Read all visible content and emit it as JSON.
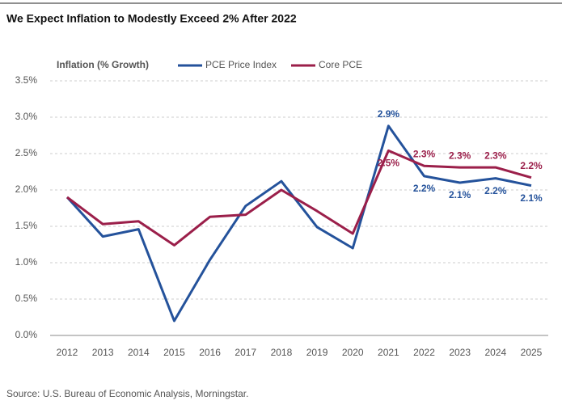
{
  "chart_data": {
    "type": "line",
    "title": "We Expect Inflation to Modestly Exceed 2% After 2022",
    "legend_title": "Inflation (% Growth)",
    "source": "Source: U.S. Bureau of Economic Analysis, Morningstar.",
    "categories": [
      "2012",
      "2013",
      "2014",
      "2015",
      "2016",
      "2017",
      "2018",
      "2019",
      "2020",
      "2021",
      "2022",
      "2023",
      "2024",
      "2025"
    ],
    "series": [
      {
        "name": "PCE Price Index",
        "color": "#24529b",
        "values": [
          1.9,
          1.36,
          1.46,
          0.2,
          1.04,
          1.78,
          2.12,
          1.49,
          1.2,
          2.88,
          2.19,
          2.1,
          2.16,
          2.06
        ],
        "value_labels": [
          null,
          null,
          null,
          null,
          null,
          null,
          null,
          null,
          null,
          "2.9%",
          "2.2%",
          "2.1%",
          "2.2%",
          "2.1%"
        ]
      },
      {
        "name": "Core PCE",
        "color": "#9b1f4a",
        "values": [
          1.9,
          1.53,
          1.57,
          1.24,
          1.63,
          1.66,
          2.0,
          1.71,
          1.4,
          2.54,
          2.33,
          2.31,
          2.31,
          2.17
        ],
        "value_labels": [
          null,
          null,
          null,
          null,
          null,
          null,
          null,
          null,
          null,
          "2.5%",
          "2.3%",
          "2.3%",
          "2.3%",
          "2.2%"
        ]
      }
    ],
    "ylim": [
      0,
      3.5
    ],
    "yticks": [
      {
        "value": 0,
        "label": "0.0%"
      },
      {
        "value": 0.5,
        "label": "0.5%"
      },
      {
        "value": 1,
        "label": "1.0%"
      },
      {
        "value": 1.5,
        "label": "1.5%"
      },
      {
        "value": 2,
        "label": "2.0%"
      },
      {
        "value": 2.5,
        "label": "2.5%"
      },
      {
        "value": 3,
        "label": "3.0%"
      },
      {
        "value": 3.5,
        "label": "3.5%"
      }
    ],
    "grid": true
  }
}
